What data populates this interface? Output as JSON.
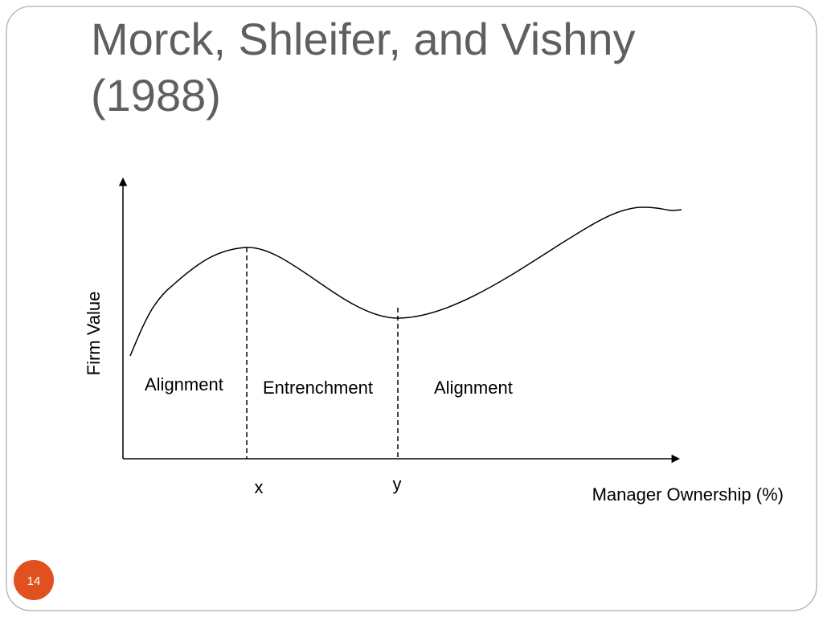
{
  "header": {
    "title": "Morck, Shleifer, and Vishny (1988)"
  },
  "diagram": {
    "y_axis_label": "Firm Value",
    "x_axis_label": "Manager Ownership (%)",
    "regions": [
      "Alignment",
      "Entrenchment",
      "Alignment"
    ],
    "markers": [
      "x",
      "y"
    ]
  },
  "footer": {
    "slide_number": "14"
  }
}
